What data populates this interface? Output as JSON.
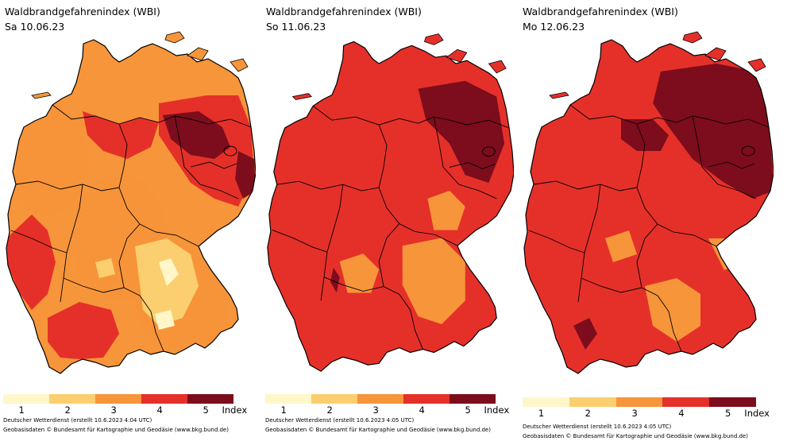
{
  "panels": [
    {
      "title": "Waldbrandgefahrenindex (WBI)",
      "date": "Sa 10.06.23",
      "credit1": "Deutscher Wetterdienst (erstellt 10.6.2023 4:04 UTC)",
      "credit2": "Geobasisdaten © Bundesamt für Kartographie und Geodäsie (www.bkg.bund.de)",
      "dominant_level": 3
    },
    {
      "title": "Waldbrandgefahrenindex (WBI)",
      "date": "So 11.06.23",
      "credit1": "Deutscher Wetterdienst (erstellt 10.6.2023 4:05 UTC)",
      "credit2": "Geobasisdaten © Bundesamt für Kartographie und Geodäsie (www.bkg.bund.de)",
      "dominant_level": 4
    },
    {
      "title": "Waldbrandgefahrenindex (WBI)",
      "date": "Mo 12.06.23",
      "credit1": "Deutscher Wetterdienst (erstellt 10.6.2023 4:05 UTC)",
      "credit2": "Geobasisdaten © Bundesamt für Kartographie und Geodäsie (www.bkg.bund.de)",
      "dominant_level": 4
    }
  ],
  "legend": {
    "levels": [
      "1",
      "2",
      "3",
      "4",
      "5"
    ],
    "unit": "Index",
    "colors": [
      "#fff7c9",
      "#fbcf6f",
      "#f7953a",
      "#e5302a",
      "#7d0d1c"
    ]
  }
}
